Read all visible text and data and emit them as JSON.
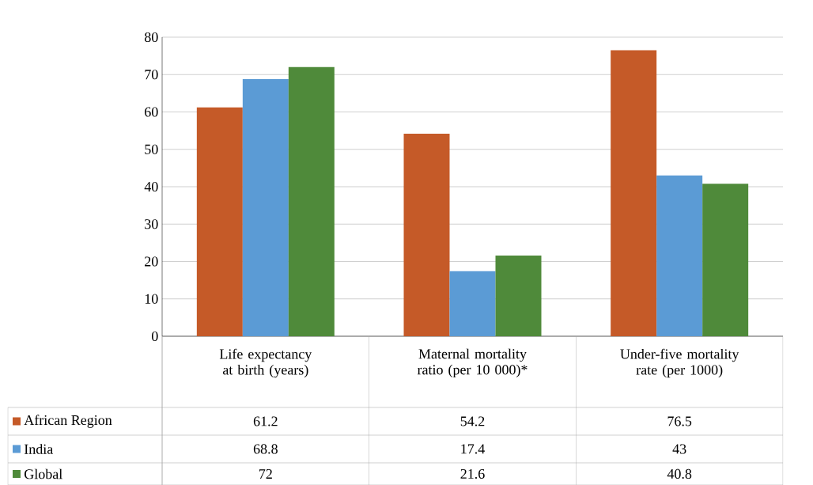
{
  "chart_data": {
    "type": "bar",
    "categories": [
      "Life expectancy at birth (years)",
      "Maternal mortality ratio (per 10 000)*",
      "Under-five mortality rate (per 1000)"
    ],
    "series": [
      {
        "name": "African Region",
        "color": "#c55a28",
        "values": [
          61.2,
          54.2,
          76.5
        ]
      },
      {
        "name": "India",
        "color": "#5b9bd5",
        "values": [
          68.8,
          17.4,
          43
        ]
      },
      {
        "name": "Global",
        "color": "#4f8a3a",
        "values": [
          72,
          21.6,
          40.8
        ]
      }
    ],
    "ylim": [
      0,
      80
    ],
    "yticks": [
      0,
      10,
      20,
      30,
      40,
      50,
      60,
      70,
      80
    ],
    "grid": "y",
    "legend": "bottom left",
    "data_labels": true
  }
}
